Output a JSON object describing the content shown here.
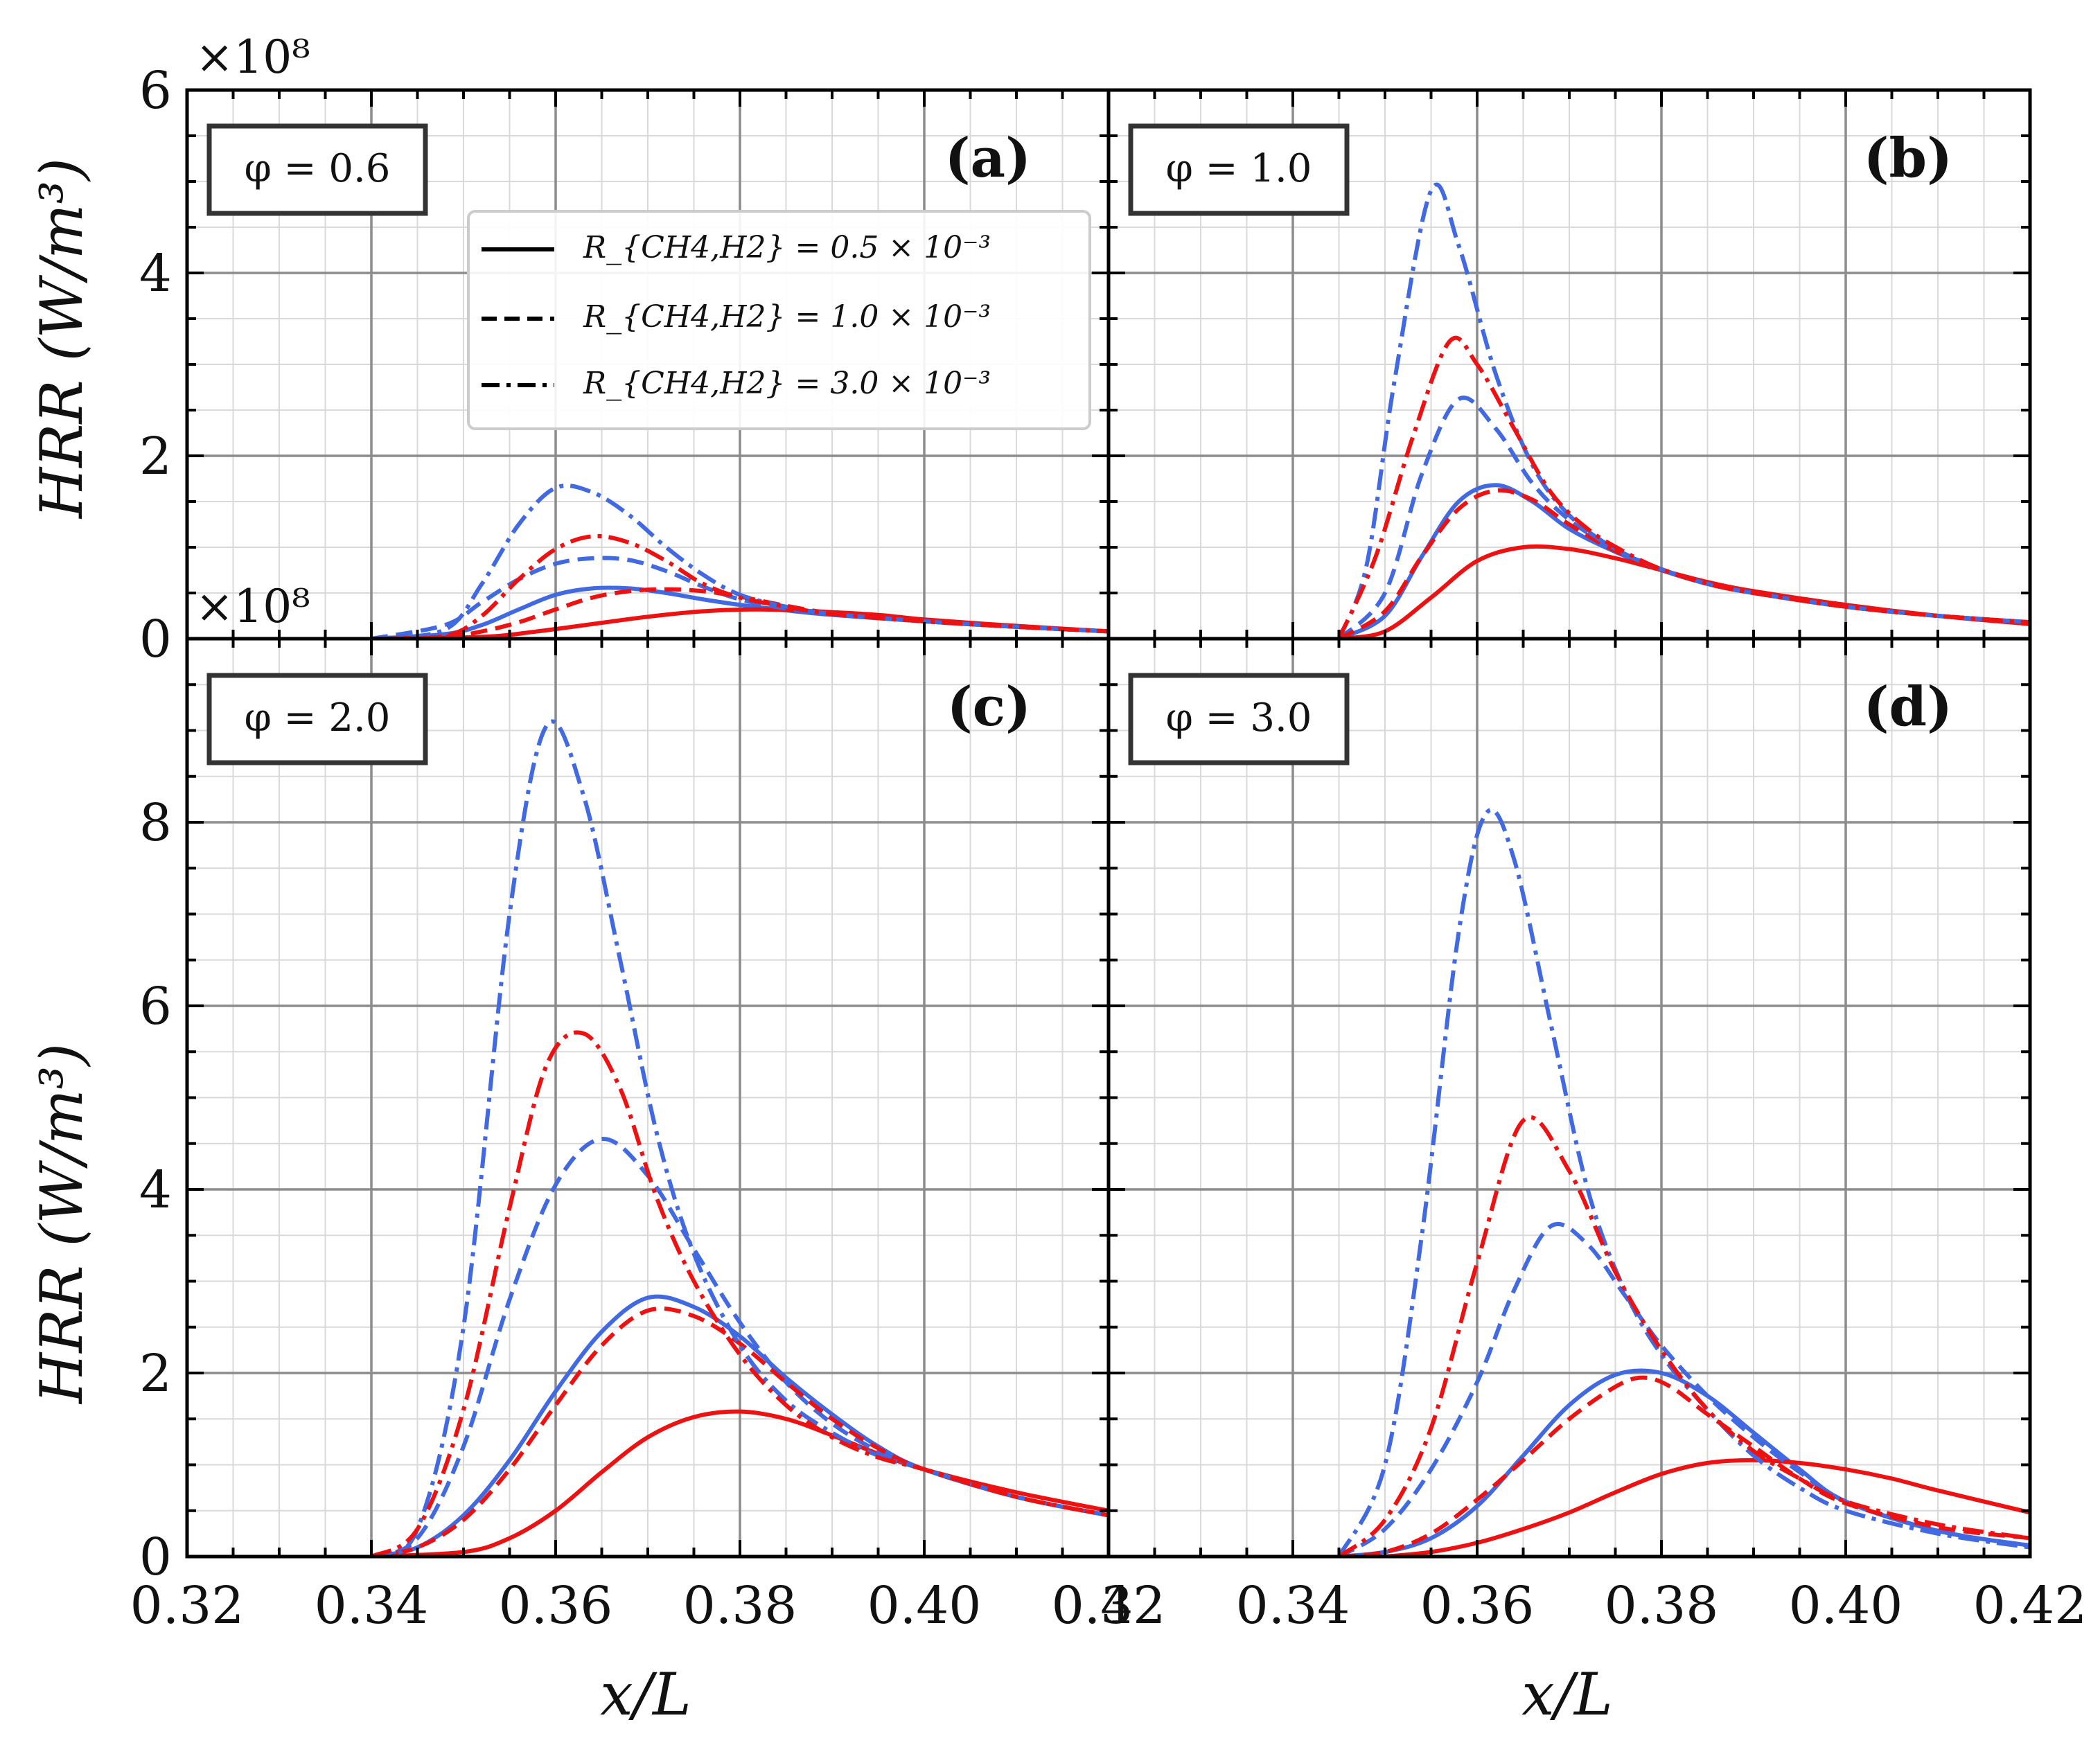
{
  "figure": {
    "xlabel": "x/L",
    "ylabel": "HRR (W/m³)",
    "y_multiplier": "×10⁸",
    "x_ticks": [
      "0.32",
      "0.34",
      "0.36",
      "0.38",
      "0.40",
      "0.42"
    ],
    "y_ticks_top": [
      "0",
      "2",
      "4",
      "6"
    ],
    "y_ticks_bottom": [
      "0",
      "2",
      "4",
      "6",
      "8"
    ],
    "colors": {
      "blue": "#4169e1",
      "red": "#ee1111",
      "grid": "#8c8c8c"
    }
  },
  "legend": [
    {
      "style": "solid",
      "label": "R_{CH4,H2} = 0.5 × 10⁻³"
    },
    {
      "style": "dashed",
      "label": "R_{CH4,H2} = 1.0 × 10⁻³"
    },
    {
      "style": "dashdot",
      "label": "R_{CH4,H2} = 3.0 × 10⁻³"
    }
  ],
  "chart_data": [
    {
      "type": "line",
      "panel": "(a)",
      "phi": "φ = 0.6",
      "xlim": [
        0.32,
        0.42
      ],
      "ylim": [
        0,
        6
      ],
      "y_unit": "×10⁸ W/m³",
      "series": [
        {
          "name": "blue solid",
          "color": "blue",
          "style": "solid",
          "x": [
            0.34,
            0.348,
            0.352,
            0.356,
            0.36,
            0.364,
            0.368,
            0.372,
            0.376,
            0.38,
            0.385,
            0.39,
            0.4,
            0.41,
            0.42
          ],
          "values": [
            0,
            0.05,
            0.15,
            0.32,
            0.48,
            0.55,
            0.55,
            0.5,
            0.43,
            0.37,
            0.31,
            0.26,
            0.19,
            0.13,
            0.08
          ]
        },
        {
          "name": "red solid",
          "color": "red",
          "style": "solid",
          "x": [
            0.34,
            0.352,
            0.358,
            0.364,
            0.37,
            0.376,
            0.382,
            0.388,
            0.395,
            0.4,
            0.41,
            0.42
          ],
          "values": [
            0,
            0.02,
            0.08,
            0.16,
            0.24,
            0.3,
            0.32,
            0.3,
            0.26,
            0.21,
            0.14,
            0.08
          ]
        },
        {
          "name": "blue dashed",
          "color": "blue",
          "style": "dashed",
          "x": [
            0.34,
            0.348,
            0.352,
            0.356,
            0.36,
            0.364,
            0.368,
            0.372,
            0.376,
            0.38,
            0.385,
            0.39,
            0.4,
            0.41,
            0.42
          ],
          "values": [
            0,
            0.15,
            0.4,
            0.65,
            0.82,
            0.88,
            0.86,
            0.74,
            0.57,
            0.43,
            0.33,
            0.27,
            0.19,
            0.13,
            0.08
          ]
        },
        {
          "name": "red dashed",
          "color": "red",
          "style": "dashed",
          "x": [
            0.34,
            0.348,
            0.352,
            0.356,
            0.36,
            0.364,
            0.368,
            0.372,
            0.376,
            0.38,
            0.385,
            0.39,
            0.4,
            0.41,
            0.42
          ],
          "values": [
            0,
            0.02,
            0.08,
            0.18,
            0.32,
            0.45,
            0.52,
            0.54,
            0.52,
            0.46,
            0.36,
            0.28,
            0.19,
            0.13,
            0.08
          ]
        },
        {
          "name": "blue dashdot",
          "color": "blue",
          "style": "dashdot",
          "x": [
            0.34,
            0.348,
            0.352,
            0.356,
            0.36,
            0.364,
            0.368,
            0.372,
            0.376,
            0.38,
            0.385,
            0.39,
            0.4,
            0.41,
            0.42
          ],
          "values": [
            0,
            0.1,
            0.6,
            1.25,
            1.65,
            1.6,
            1.35,
            1.0,
            0.7,
            0.48,
            0.35,
            0.27,
            0.19,
            0.13,
            0.08
          ]
        },
        {
          "name": "red dashdot",
          "color": "red",
          "style": "dashdot",
          "x": [
            0.34,
            0.348,
            0.352,
            0.356,
            0.36,
            0.364,
            0.368,
            0.372,
            0.376,
            0.38,
            0.385,
            0.39,
            0.4,
            0.41,
            0.42
          ],
          "values": [
            0,
            0.03,
            0.25,
            0.65,
            0.98,
            1.12,
            1.05,
            0.85,
            0.6,
            0.45,
            0.35,
            0.27,
            0.19,
            0.13,
            0.08
          ]
        }
      ]
    },
    {
      "type": "line",
      "panel": "(b)",
      "phi": "φ = 1.0",
      "xlim": [
        0.32,
        0.42
      ],
      "ylim": [
        0,
        6
      ],
      "y_unit": "×10⁸ W/m³",
      "series": [
        {
          "name": "blue solid",
          "color": "blue",
          "style": "solid",
          "x": [
            0.345,
            0.35,
            0.354,
            0.358,
            0.362,
            0.366,
            0.37,
            0.375,
            0.38,
            0.385,
            0.39,
            0.4,
            0.41,
            0.42
          ],
          "values": [
            0,
            0.25,
            0.9,
            1.5,
            1.68,
            1.5,
            1.2,
            0.95,
            0.75,
            0.6,
            0.5,
            0.35,
            0.25,
            0.18
          ]
        },
        {
          "name": "red solid",
          "color": "red",
          "style": "solid",
          "x": [
            0.345,
            0.35,
            0.355,
            0.36,
            0.365,
            0.37,
            0.375,
            0.38,
            0.385,
            0.39,
            0.4,
            0.41,
            0.42
          ],
          "values": [
            0,
            0.08,
            0.45,
            0.85,
            1.0,
            0.98,
            0.88,
            0.75,
            0.62,
            0.52,
            0.37,
            0.25,
            0.16
          ]
        },
        {
          "name": "blue dashed",
          "color": "blue",
          "style": "dashed",
          "x": [
            0.345,
            0.35,
            0.354,
            0.358,
            0.362,
            0.366,
            0.37,
            0.375,
            0.38,
            0.385,
            0.39,
            0.4,
            0.41,
            0.42
          ],
          "values": [
            0,
            0.5,
            1.8,
            2.62,
            2.3,
            1.7,
            1.3,
            0.98,
            0.76,
            0.6,
            0.5,
            0.35,
            0.25,
            0.18
          ]
        },
        {
          "name": "red dashed",
          "color": "red",
          "style": "dashed",
          "x": [
            0.345,
            0.35,
            0.354,
            0.358,
            0.362,
            0.366,
            0.37,
            0.375,
            0.38,
            0.385,
            0.39,
            0.4,
            0.41,
            0.42
          ],
          "values": [
            0,
            0.3,
            0.9,
            1.42,
            1.62,
            1.52,
            1.25,
            0.96,
            0.76,
            0.6,
            0.5,
            0.35,
            0.25,
            0.18
          ]
        },
        {
          "name": "blue dashdot",
          "color": "blue",
          "style": "dashdot",
          "x": [
            0.345,
            0.348,
            0.351,
            0.355,
            0.358,
            0.362,
            0.366,
            0.37,
            0.375,
            0.38,
            0.385,
            0.39,
            0.4,
            0.41,
            0.42
          ],
          "values": [
            0,
            0.8,
            2.8,
            4.9,
            4.3,
            2.9,
            1.9,
            1.35,
            0.98,
            0.76,
            0.6,
            0.5,
            0.35,
            0.25,
            0.18
          ]
        },
        {
          "name": "red dashdot",
          "color": "red",
          "style": "dashdot",
          "x": [
            0.345,
            0.349,
            0.353,
            0.357,
            0.36,
            0.364,
            0.368,
            0.372,
            0.376,
            0.38,
            0.385,
            0.39,
            0.4,
            0.41,
            0.42
          ],
          "values": [
            0,
            0.9,
            2.2,
            3.25,
            3.0,
            2.3,
            1.6,
            1.2,
            0.95,
            0.76,
            0.6,
            0.5,
            0.35,
            0.25,
            0.18
          ]
        }
      ]
    },
    {
      "type": "line",
      "panel": "(c)",
      "phi": "φ = 2.0",
      "xlim": [
        0.32,
        0.42
      ],
      "ylim": [
        0,
        10
      ],
      "y_unit": "×10⁸ W/m³",
      "series": [
        {
          "name": "blue solid",
          "color": "blue",
          "style": "solid",
          "x": [
            0.34,
            0.345,
            0.35,
            0.355,
            0.36,
            0.365,
            0.37,
            0.375,
            0.38,
            0.385,
            0.39,
            0.395,
            0.4,
            0.41,
            0.42
          ],
          "values": [
            0,
            0.1,
            0.45,
            1.05,
            1.8,
            2.45,
            2.82,
            2.72,
            2.4,
            1.95,
            1.55,
            1.2,
            0.95,
            0.65,
            0.45
          ]
        },
        {
          "name": "red solid",
          "color": "red",
          "style": "solid",
          "x": [
            0.34,
            0.35,
            0.355,
            0.36,
            0.365,
            0.37,
            0.375,
            0.38,
            0.385,
            0.39,
            0.395,
            0.4,
            0.41,
            0.42
          ],
          "values": [
            0,
            0.05,
            0.2,
            0.5,
            0.92,
            1.3,
            1.52,
            1.58,
            1.5,
            1.32,
            1.12,
            0.95,
            0.7,
            0.5
          ]
        },
        {
          "name": "blue dashed",
          "color": "blue",
          "style": "dashed",
          "x": [
            0.34,
            0.345,
            0.35,
            0.355,
            0.36,
            0.365,
            0.37,
            0.375,
            0.38,
            0.385,
            0.39,
            0.395,
            0.4,
            0.41,
            0.42
          ],
          "values": [
            0,
            0.2,
            1.2,
            2.8,
            4.05,
            4.55,
            4.15,
            3.35,
            2.55,
            1.9,
            1.45,
            1.15,
            0.95,
            0.65,
            0.45
          ]
        },
        {
          "name": "red dashed",
          "color": "red",
          "style": "dashed",
          "x": [
            0.34,
            0.345,
            0.35,
            0.355,
            0.36,
            0.365,
            0.37,
            0.375,
            0.38,
            0.385,
            0.39,
            0.395,
            0.4,
            0.41,
            0.42
          ],
          "values": [
            0,
            0.1,
            0.4,
            0.95,
            1.65,
            2.3,
            2.68,
            2.62,
            2.32,
            1.9,
            1.5,
            1.18,
            0.95,
            0.65,
            0.45
          ]
        },
        {
          "name": "blue dashdot",
          "color": "blue",
          "style": "dashdot",
          "x": [
            0.34,
            0.345,
            0.35,
            0.355,
            0.359,
            0.363,
            0.367,
            0.371,
            0.375,
            0.38,
            0.385,
            0.39,
            0.395,
            0.4,
            0.41,
            0.42
          ],
          "values": [
            0,
            0.3,
            2.5,
            7.0,
            9.05,
            8.3,
            6.5,
            4.6,
            3.3,
            2.3,
            1.7,
            1.35,
            1.1,
            0.95,
            0.65,
            0.45
          ]
        },
        {
          "name": "red dashdot",
          "color": "red",
          "style": "dashdot",
          "x": [
            0.34,
            0.345,
            0.35,
            0.355,
            0.359,
            0.363,
            0.367,
            0.371,
            0.375,
            0.38,
            0.385,
            0.39,
            0.395,
            0.4,
            0.41,
            0.42
          ],
          "values": [
            0,
            0.3,
            1.6,
            3.8,
            5.35,
            5.7,
            5.1,
            3.9,
            3.0,
            2.2,
            1.65,
            1.3,
            1.08,
            0.95,
            0.65,
            0.45
          ]
        }
      ]
    },
    {
      "type": "line",
      "panel": "(d)",
      "phi": "φ = 3.0",
      "xlim": [
        0.32,
        0.42
      ],
      "ylim": [
        0,
        10
      ],
      "y_unit": "×10⁸ W/m³",
      "series": [
        {
          "name": "blue solid",
          "color": "blue",
          "style": "solid",
          "x": [
            0.345,
            0.35,
            0.355,
            0.36,
            0.365,
            0.37,
            0.375,
            0.38,
            0.385,
            0.39,
            0.395,
            0.4,
            0.41,
            0.42
          ],
          "values": [
            0,
            0.05,
            0.2,
            0.55,
            1.1,
            1.65,
            1.98,
            2.0,
            1.75,
            1.35,
            0.95,
            0.6,
            0.28,
            0.12
          ]
        },
        {
          "name": "red solid",
          "color": "red",
          "style": "solid",
          "x": [
            0.35,
            0.355,
            0.36,
            0.365,
            0.37,
            0.375,
            0.38,
            0.385,
            0.39,
            0.395,
            0.4,
            0.405,
            0.41,
            0.42
          ],
          "values": [
            0,
            0.05,
            0.15,
            0.3,
            0.48,
            0.7,
            0.9,
            1.02,
            1.05,
            1.02,
            0.95,
            0.85,
            0.72,
            0.48
          ]
        },
        {
          "name": "blue dashed",
          "color": "blue",
          "style": "dashed",
          "x": [
            0.345,
            0.35,
            0.355,
            0.36,
            0.364,
            0.368,
            0.372,
            0.376,
            0.38,
            0.385,
            0.39,
            0.395,
            0.4,
            0.41,
            0.42
          ],
          "values": [
            0,
            0.3,
            0.95,
            1.9,
            2.9,
            3.6,
            3.4,
            2.85,
            2.3,
            1.75,
            1.3,
            0.92,
            0.6,
            0.28,
            0.12
          ]
        },
        {
          "name": "red dashed",
          "color": "red",
          "style": "dashed",
          "x": [
            0.345,
            0.35,
            0.355,
            0.36,
            0.365,
            0.37,
            0.375,
            0.378,
            0.381,
            0.385,
            0.39,
            0.395,
            0.4,
            0.41,
            0.42
          ],
          "values": [
            0,
            0.05,
            0.25,
            0.62,
            1.05,
            1.5,
            1.85,
            1.95,
            1.85,
            1.55,
            1.2,
            0.85,
            0.58,
            0.32,
            0.2
          ]
        },
        {
          "name": "blue dashdot",
          "color": "blue",
          "style": "dashdot",
          "x": [
            0.345,
            0.35,
            0.354,
            0.358,
            0.361,
            0.364,
            0.368,
            0.372,
            0.376,
            0.38,
            0.385,
            0.39,
            0.395,
            0.4,
            0.41,
            0.42
          ],
          "values": [
            0,
            1.0,
            3.5,
            6.8,
            8.1,
            7.6,
            5.8,
            4.0,
            2.9,
            2.2,
            1.6,
            1.1,
            0.75,
            0.5,
            0.25,
            0.1
          ]
        },
        {
          "name": "red dashdot",
          "color": "red",
          "style": "dashdot",
          "x": [
            0.345,
            0.35,
            0.355,
            0.36,
            0.365,
            0.37,
            0.375,
            0.38,
            0.385,
            0.39,
            0.395,
            0.4,
            0.41,
            0.42
          ],
          "values": [
            0,
            0.4,
            1.4,
            3.2,
            4.75,
            4.2,
            3.1,
            2.25,
            1.6,
            1.15,
            0.85,
            0.6,
            0.35,
            0.2
          ]
        }
      ]
    }
  ]
}
